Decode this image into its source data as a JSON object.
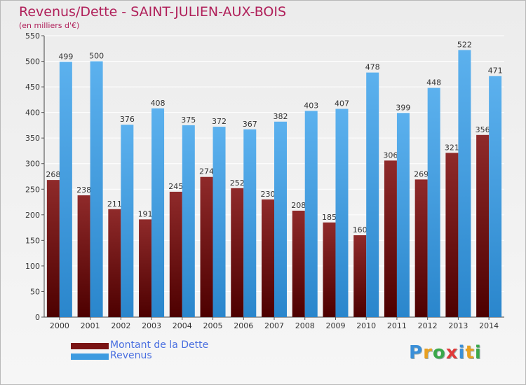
{
  "header": {
    "title": "Revenus/Dette - SAINT-JULIEN-AUX-BOIS",
    "subtitle": "(en milliers d'€)"
  },
  "chart_data": {
    "type": "bar",
    "title": "Revenus/Dette - SAINT-JULIEN-AUX-BOIS",
    "subtitle": "(en milliers d'€)",
    "xlabel": "",
    "ylabel": "",
    "ylim": [
      0,
      550
    ],
    "yticks": [
      0,
      50,
      100,
      150,
      200,
      250,
      300,
      350,
      400,
      450,
      500,
      550
    ],
    "grid": true,
    "categories": [
      "2000",
      "2001",
      "2002",
      "2003",
      "2004",
      "2005",
      "2006",
      "2007",
      "2008",
      "2009",
      "2010",
      "2011",
      "2012",
      "2013",
      "2014"
    ],
    "series": [
      {
        "name": "Montant de la Dette",
        "color": "#7a1414",
        "values": [
          268,
          238,
          211,
          191,
          245,
          274,
          252,
          230,
          208,
          185,
          160,
          306,
          269,
          321,
          356
        ]
      },
      {
        "name": "Revenus",
        "color": "#3d9be0",
        "values": [
          499,
          500,
          376,
          408,
          375,
          372,
          367,
          382,
          403,
          407,
          478,
          399,
          448,
          522,
          471
        ]
      }
    ],
    "legend_position": "bottom-left"
  },
  "legend": {
    "items": [
      {
        "label": "Montant de la Dette",
        "color": "#7a1414"
      },
      {
        "label": "Revenus",
        "color": "#3d9be0"
      }
    ]
  },
  "logo": {
    "letters": [
      "P",
      "r",
      "o",
      "x",
      "i",
      "t",
      "i"
    ],
    "colors": [
      "#3a8fd8",
      "#e8a020",
      "#3aa84a",
      "#e03a3a",
      "#3a8fd8",
      "#e8a020",
      "#3aa84a"
    ]
  }
}
